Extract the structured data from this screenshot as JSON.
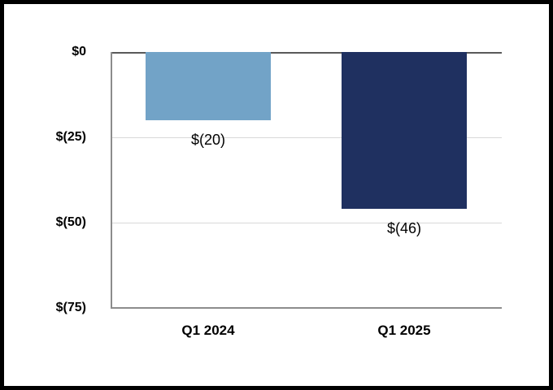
{
  "window": {
    "background": "#FFFFFF",
    "frame_border_color": "#000000"
  },
  "chart_data": {
    "type": "bar",
    "title": "",
    "xlabel": "",
    "ylabel": "",
    "legend": "none",
    "grid": "horizontal",
    "categories": [
      "Q1 2024",
      "Q1 2025"
    ],
    "values": [
      -20,
      -46
    ],
    "data_labels": [
      "$(20)",
      "$(46)"
    ],
    "bar_colors": [
      "#72A3C7",
      "#1F3060"
    ],
    "y_ticks": [
      {
        "label": "$0",
        "value": 0
      },
      {
        "label": "$(25)",
        "value": -25
      },
      {
        "label": "$(50)",
        "value": -50
      },
      {
        "label": "$(75)",
        "value": -75
      }
    ],
    "ylim": [
      0,
      -75
    ],
    "colors": {
      "gridline": "#D9D9D9",
      "zero_line": "#595959",
      "axis_line": "#8C8C8C",
      "text": "#000000"
    }
  }
}
